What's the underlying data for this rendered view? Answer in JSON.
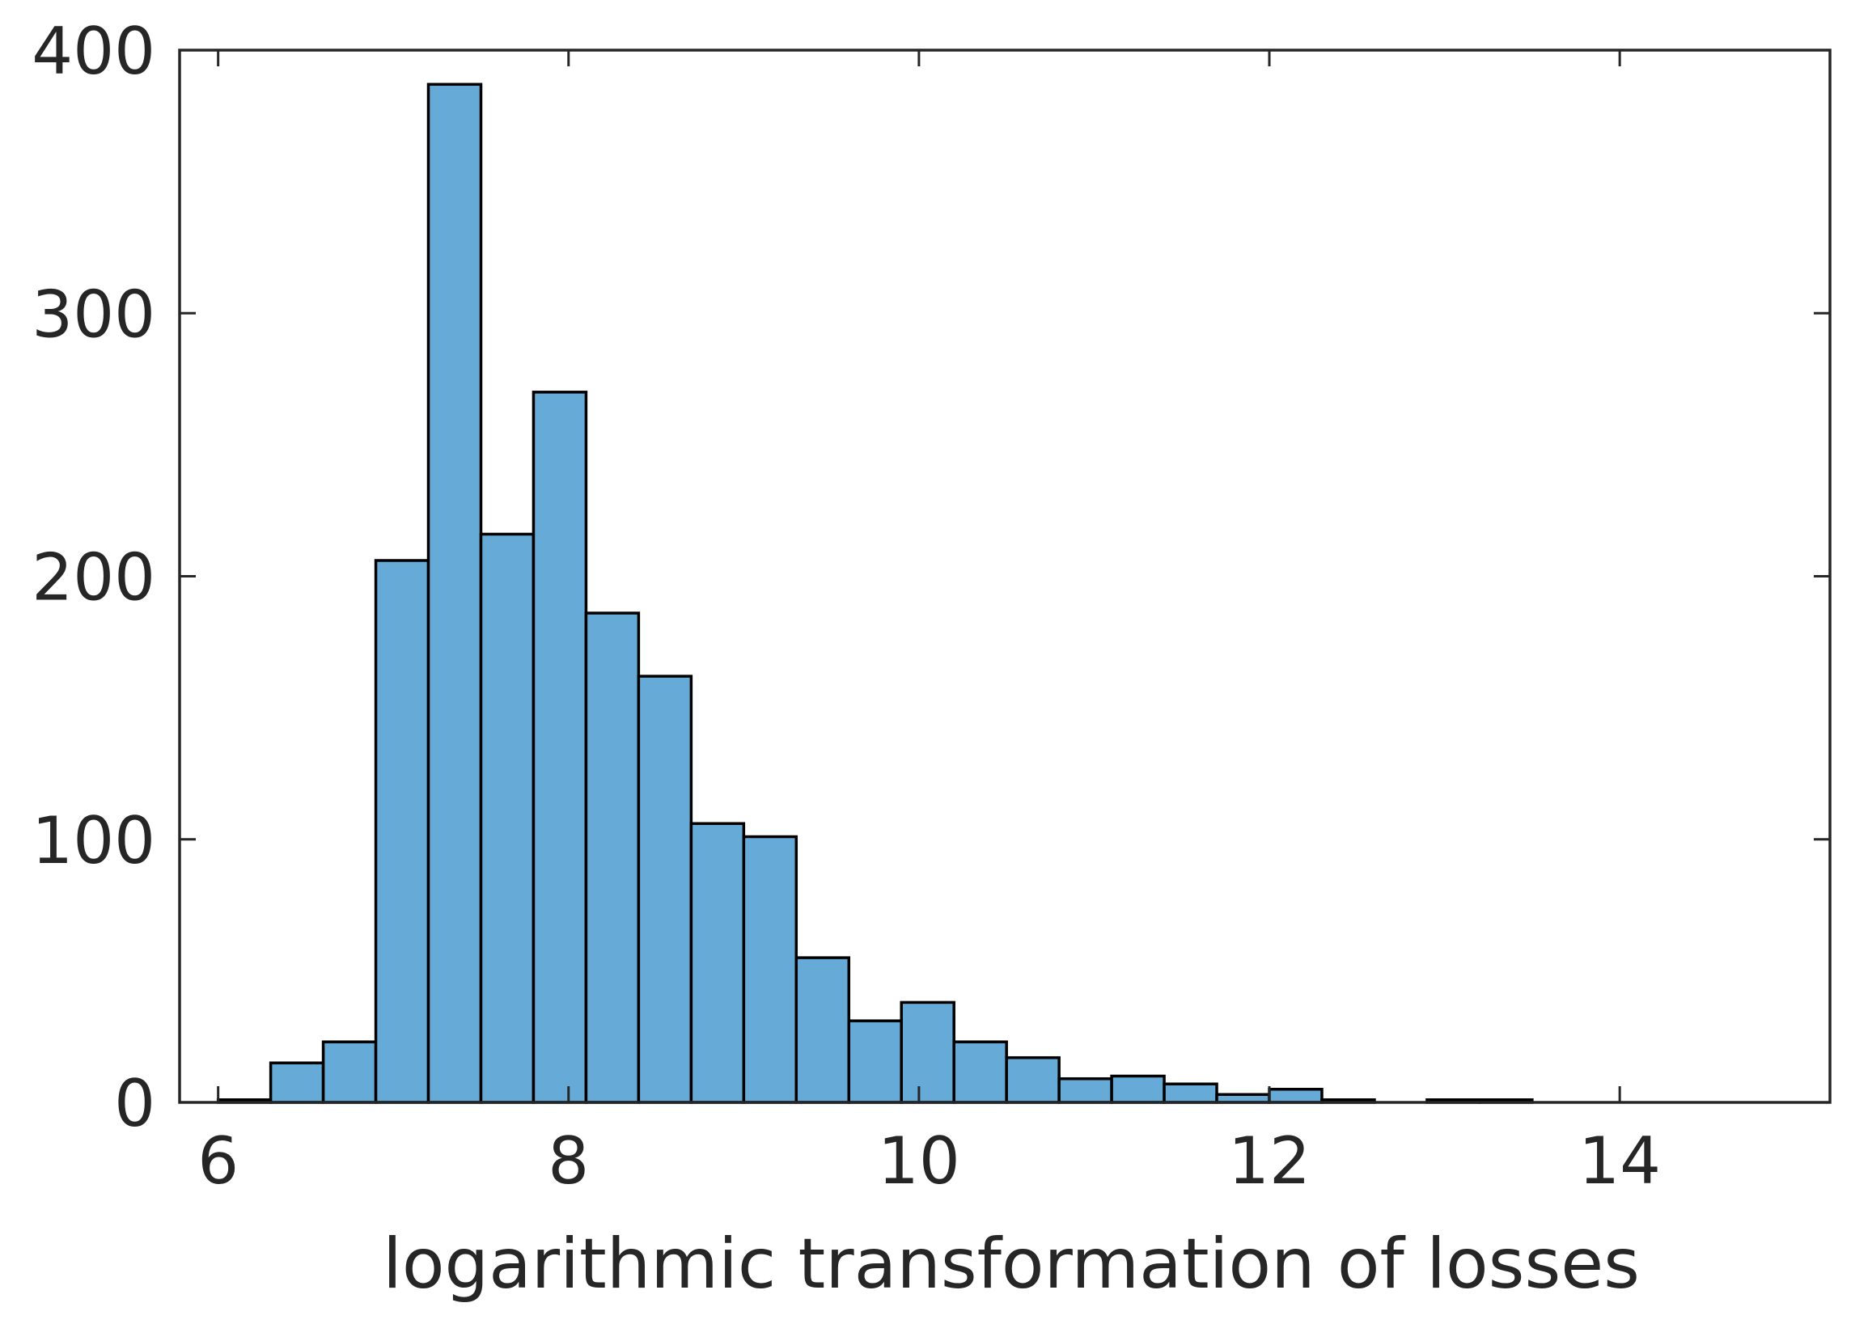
{
  "chart_data": {
    "type": "bar",
    "title": "",
    "xlabel": "logarithmic transformation of losses",
    "ylabel": "",
    "xlim": [
      5.78,
      15.2
    ],
    "ylim": [
      0,
      400
    ],
    "xticks": [
      6,
      8,
      10,
      12,
      14
    ],
    "yticks": [
      0,
      100,
      200,
      300,
      400
    ],
    "grid": false,
    "bin_edges": [
      6.0,
      6.3,
      6.6,
      6.9,
      7.2,
      7.5,
      7.8,
      8.1,
      8.4,
      8.7,
      9.0,
      9.3,
      9.6,
      9.9,
      10.2,
      10.5,
      10.8,
      11.1,
      11.4,
      11.7,
      12.0,
      12.3,
      12.6,
      12.9,
      13.2,
      13.5,
      13.8,
      14.1,
      14.4
    ],
    "values": [
      1,
      15,
      23,
      206,
      387,
      216,
      270,
      186,
      162,
      106,
      101,
      55,
      31,
      38,
      23,
      17,
      9,
      10,
      7,
      3,
      5,
      1,
      0,
      1,
      1,
      0,
      0,
      0
    ],
    "bar_color": "#66aad8",
    "edge_color": "#000000",
    "axis_color": "#262626"
  }
}
